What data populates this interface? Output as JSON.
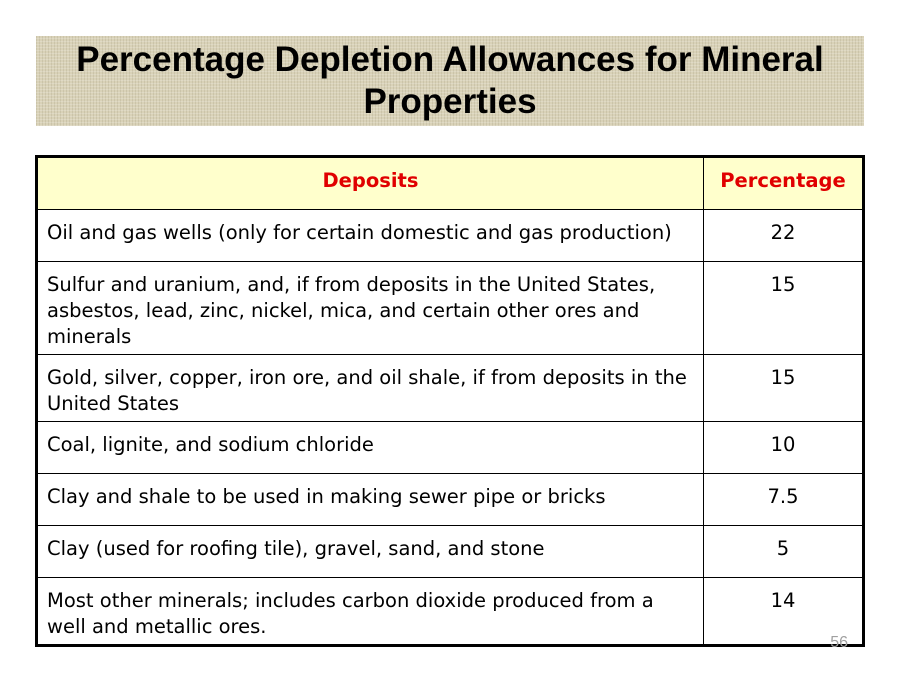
{
  "title": "Percentage Depletion Allowances for Mineral Properties",
  "table": {
    "headers": {
      "deposits": "Deposits",
      "percentage": "Percentage"
    },
    "rows": [
      {
        "deposit": "Oil and gas wells (only for certain domestic and gas production)",
        "percentage": "22"
      },
      {
        "deposit": "Sulfur and uranium, and, if from deposits in the United States, asbestos, lead, zinc, nickel, mica, and certain other ores and minerals",
        "percentage": "15"
      },
      {
        "deposit": "Gold, silver, copper, iron ore, and oil shale, if from deposits in the United States",
        "percentage": "15"
      },
      {
        "deposit": "Coal, lignite, and sodium chloride",
        "percentage": "10"
      },
      {
        "deposit": "Clay and shale to be used in making sewer pipe or bricks",
        "percentage": "7.5"
      },
      {
        "deposit": "Clay (used for roofing tile), gravel, sand, and stone",
        "percentage": "5"
      },
      {
        "deposit": "Most other minerals; includes carbon dioxide produced from a well and metallic ores.",
        "percentage": "14"
      }
    ]
  },
  "page_number": "56",
  "colors": {
    "header_bg": "#ffffcc",
    "header_text": "#e00000",
    "title_band": "#d9d2b8"
  }
}
